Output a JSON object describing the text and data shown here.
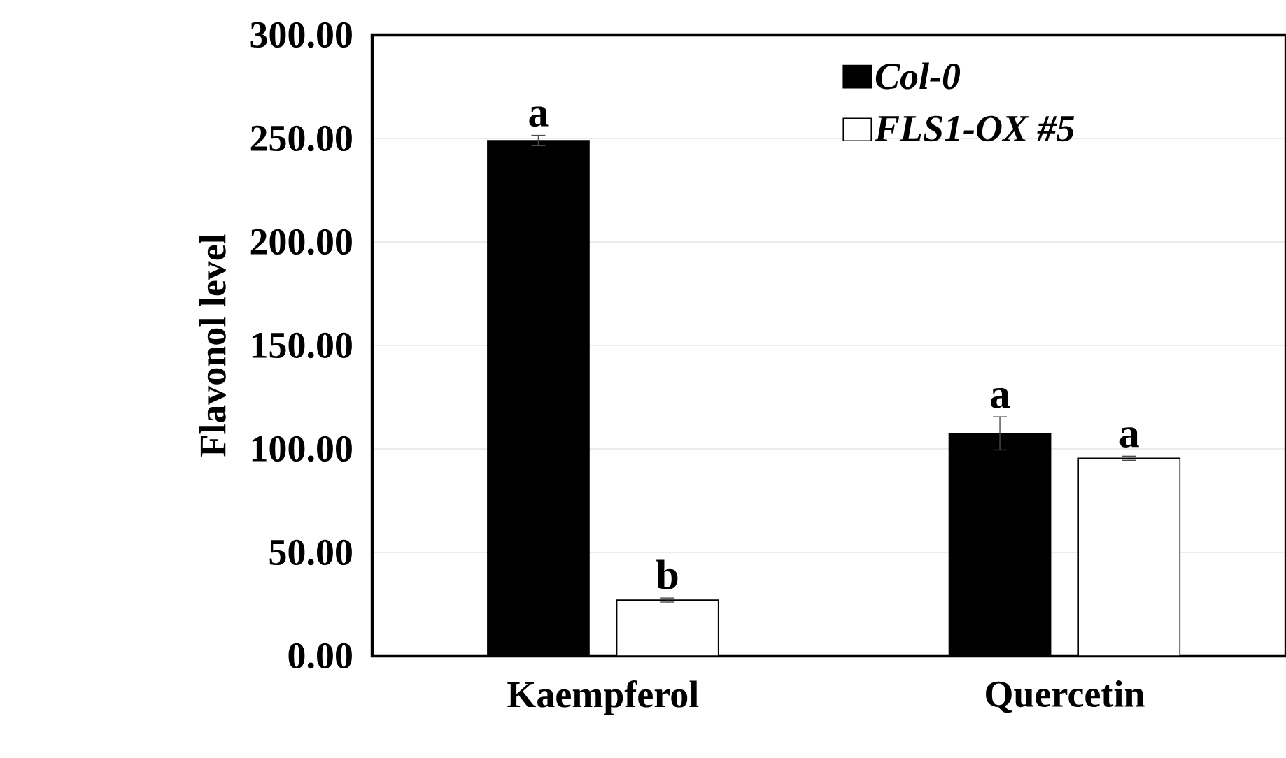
{
  "chart_data": {
    "type": "bar",
    "ylabel": "Flavonol level",
    "categories": [
      "Kaempferol",
      "Quercetin"
    ],
    "series": [
      {
        "name": "Col-0",
        "color": "#000000",
        "values": [
          249,
          107.5
        ],
        "errors": [
          2.5,
          8
        ],
        "value_labels": [
          "a",
          "a"
        ]
      },
      {
        "name": "FLS1-OX #5",
        "color": "#ffffff",
        "values": [
          27,
          95.5
        ],
        "errors": [
          1,
          1
        ],
        "value_labels": [
          "b",
          "a"
        ]
      }
    ],
    "ylim": [
      0,
      300
    ],
    "yticks": [
      {
        "value": 0,
        "label": "0.00"
      },
      {
        "value": 50,
        "label": "50.00"
      },
      {
        "value": 100,
        "label": "100.00"
      },
      {
        "value": 150,
        "label": "150.00"
      },
      {
        "value": 200,
        "label": "200.00"
      },
      {
        "value": 250,
        "label": "250.00"
      },
      {
        "value": 300,
        "label": "300.00"
      }
    ],
    "grid": "y",
    "legend": "top right"
  }
}
